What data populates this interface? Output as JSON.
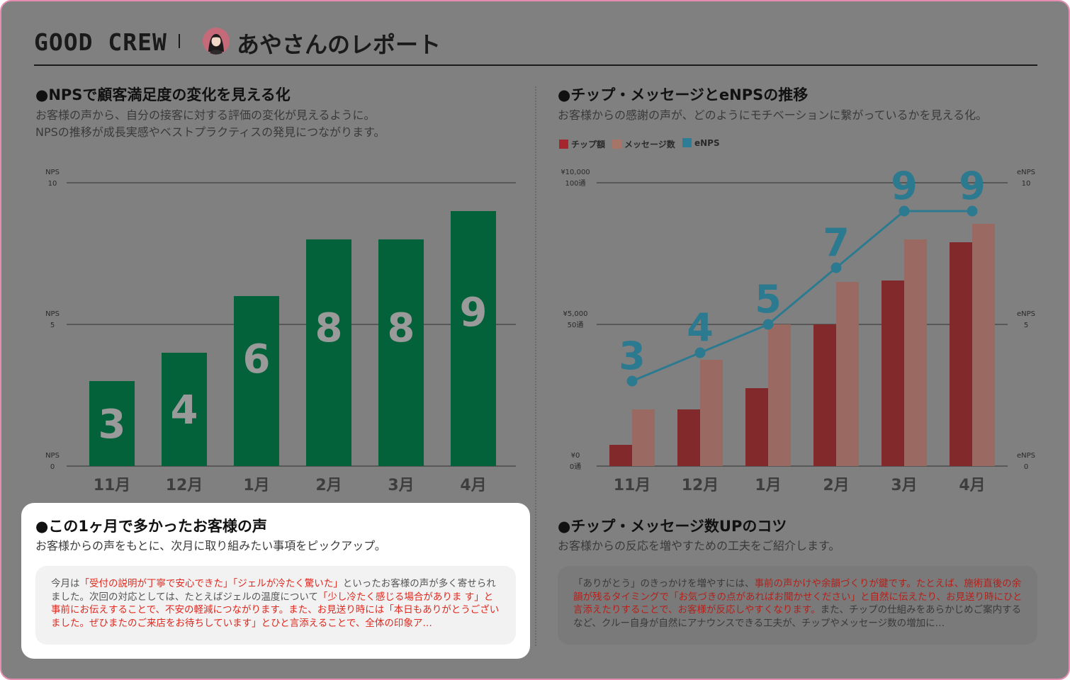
{
  "header": {
    "brand": "GOOD CREW",
    "report_title": "あやさんのレポート"
  },
  "nps_section": {
    "title": "●NPSで顧客満足度の変化を見える化",
    "desc_line1": "お客様の声から、自分の接客に対する評価の変化が見えるように。",
    "desc_line2": "NPSの推移が成長実感やベストプラクティスの発見につながります。"
  },
  "trend_section": {
    "title": "●チップ・メッセージとeNPSの推移",
    "desc": "お客様からの感謝の声が、どのようにモチベーションに繋がっているかを見える化。"
  },
  "voice_section": {
    "title": "●この1ヶ月で多かったお客様の声",
    "desc": "お客様からの声をもとに、次月に取り組みたい事項をピックアップ。",
    "text": [
      {
        "t": "今月は",
        "hl": false
      },
      {
        "t": "「受付の説明が丁寧で安心できた」「ジェルが冷たく驚いた」",
        "hl": true
      },
      {
        "t": "といったお客様の声が多く寄せられました。次回の対応としては、たとえばジェルの温度について",
        "hl": false
      },
      {
        "t": "「少し冷たく感じる場合がありま す」と事前にお伝えすることで、不安の軽減につながります。また、お見送り時には「本日もありがとうございました。ぜひまたのご来店をお待ちしています」とひと言添えることで、全体の印象ア…",
        "hl": true
      }
    ]
  },
  "tips_section": {
    "title": "●チップ・メッセージ数UPのコツ",
    "desc": "お客様からの反応を増やすための工夫をご紹介します。",
    "text": [
      {
        "t": "「ありがとう」のきっかけを増やすには、",
        "hl": false
      },
      {
        "t": "事前の声かけや余韻づくりが鍵です。たとえば、施術直後の余韻が残るタイミングで「お気づきの点があればお聞かせください」と自然に伝えたり、お見送り時にひと言添えたりすることで、お客様が反応しやすくなります。",
        "hl": true
      },
      {
        "t": "また、チップの仕組みをあらかじめご案内するなど、クルー自身が自然にアナウンスできる工夫が、チップやメッセージ数の増加に…",
        "hl": false
      }
    ]
  },
  "colors": {
    "nps_bar": "#036239",
    "tip_bar": "#822a2b",
    "message_bar": "#9a6a62",
    "enps_line": "#2c7a90",
    "legend_tip": "#a5262c",
    "legend_msg": "#a77567",
    "legend_enps": "#2c7d95"
  },
  "chart_data": [
    {
      "type": "bar",
      "title": "●NPSで顧客満足度の変化を見える化",
      "categories": [
        "11月",
        "12月",
        "1月",
        "2月",
        "3月",
        "4月"
      ],
      "values": [
        3,
        4,
        6,
        8,
        8,
        9
      ],
      "ylim": [
        0,
        10
      ],
      "y_ticks": [
        {
          "label": "NPS",
          "value_label": "10",
          "value": 10
        },
        {
          "label": "NPS",
          "value_label": "5",
          "value": 5
        },
        {
          "label": "NPS",
          "value_label": "0",
          "value": 0
        }
      ],
      "grid": true,
      "data_labels": true
    },
    {
      "type": "bar",
      "title": "●チップ・メッセージとeNPSの推移",
      "categories": [
        "11月",
        "12月",
        "1月",
        "2月",
        "3月",
        "4月"
      ],
      "legend": [
        "チップ額",
        "メッセージ数",
        "eNPS"
      ],
      "legend_position": "top-left",
      "series": [
        {
          "name": "チップ額",
          "kind": "bar",
          "axis": "left_yen",
          "values": [
            750,
            2000,
            2750,
            5000,
            6550,
            7900
          ]
        },
        {
          "name": "メッセージ数",
          "kind": "bar",
          "axis": "left_count",
          "values": [
            20,
            37.5,
            50,
            65,
            80,
            85.5
          ]
        },
        {
          "name": "eNPS",
          "kind": "line",
          "axis": "right",
          "values": [
            3,
            4,
            5,
            7,
            9,
            9
          ]
        }
      ],
      "left_ticks": [
        {
          "line1": "¥10,000",
          "line2": "100通",
          "value": 10000
        },
        {
          "line1": "¥5,000",
          "line2": "50通",
          "value": 5000
        },
        {
          "line1": "¥0",
          "line2": "0通",
          "value": 0
        }
      ],
      "right_ticks": [
        {
          "line1": "eNPS",
          "line2": "10",
          "value": 10
        },
        {
          "line1": "eNPS",
          "line2": "5",
          "value": 5
        },
        {
          "line1": "eNPS",
          "line2": "0",
          "value": 0
        }
      ],
      "ylim_left_yen": [
        0,
        10000
      ],
      "ylim_left_count": [
        0,
        100
      ],
      "ylim_right": [
        0,
        10
      ],
      "grid": true,
      "data_labels": true
    }
  ]
}
